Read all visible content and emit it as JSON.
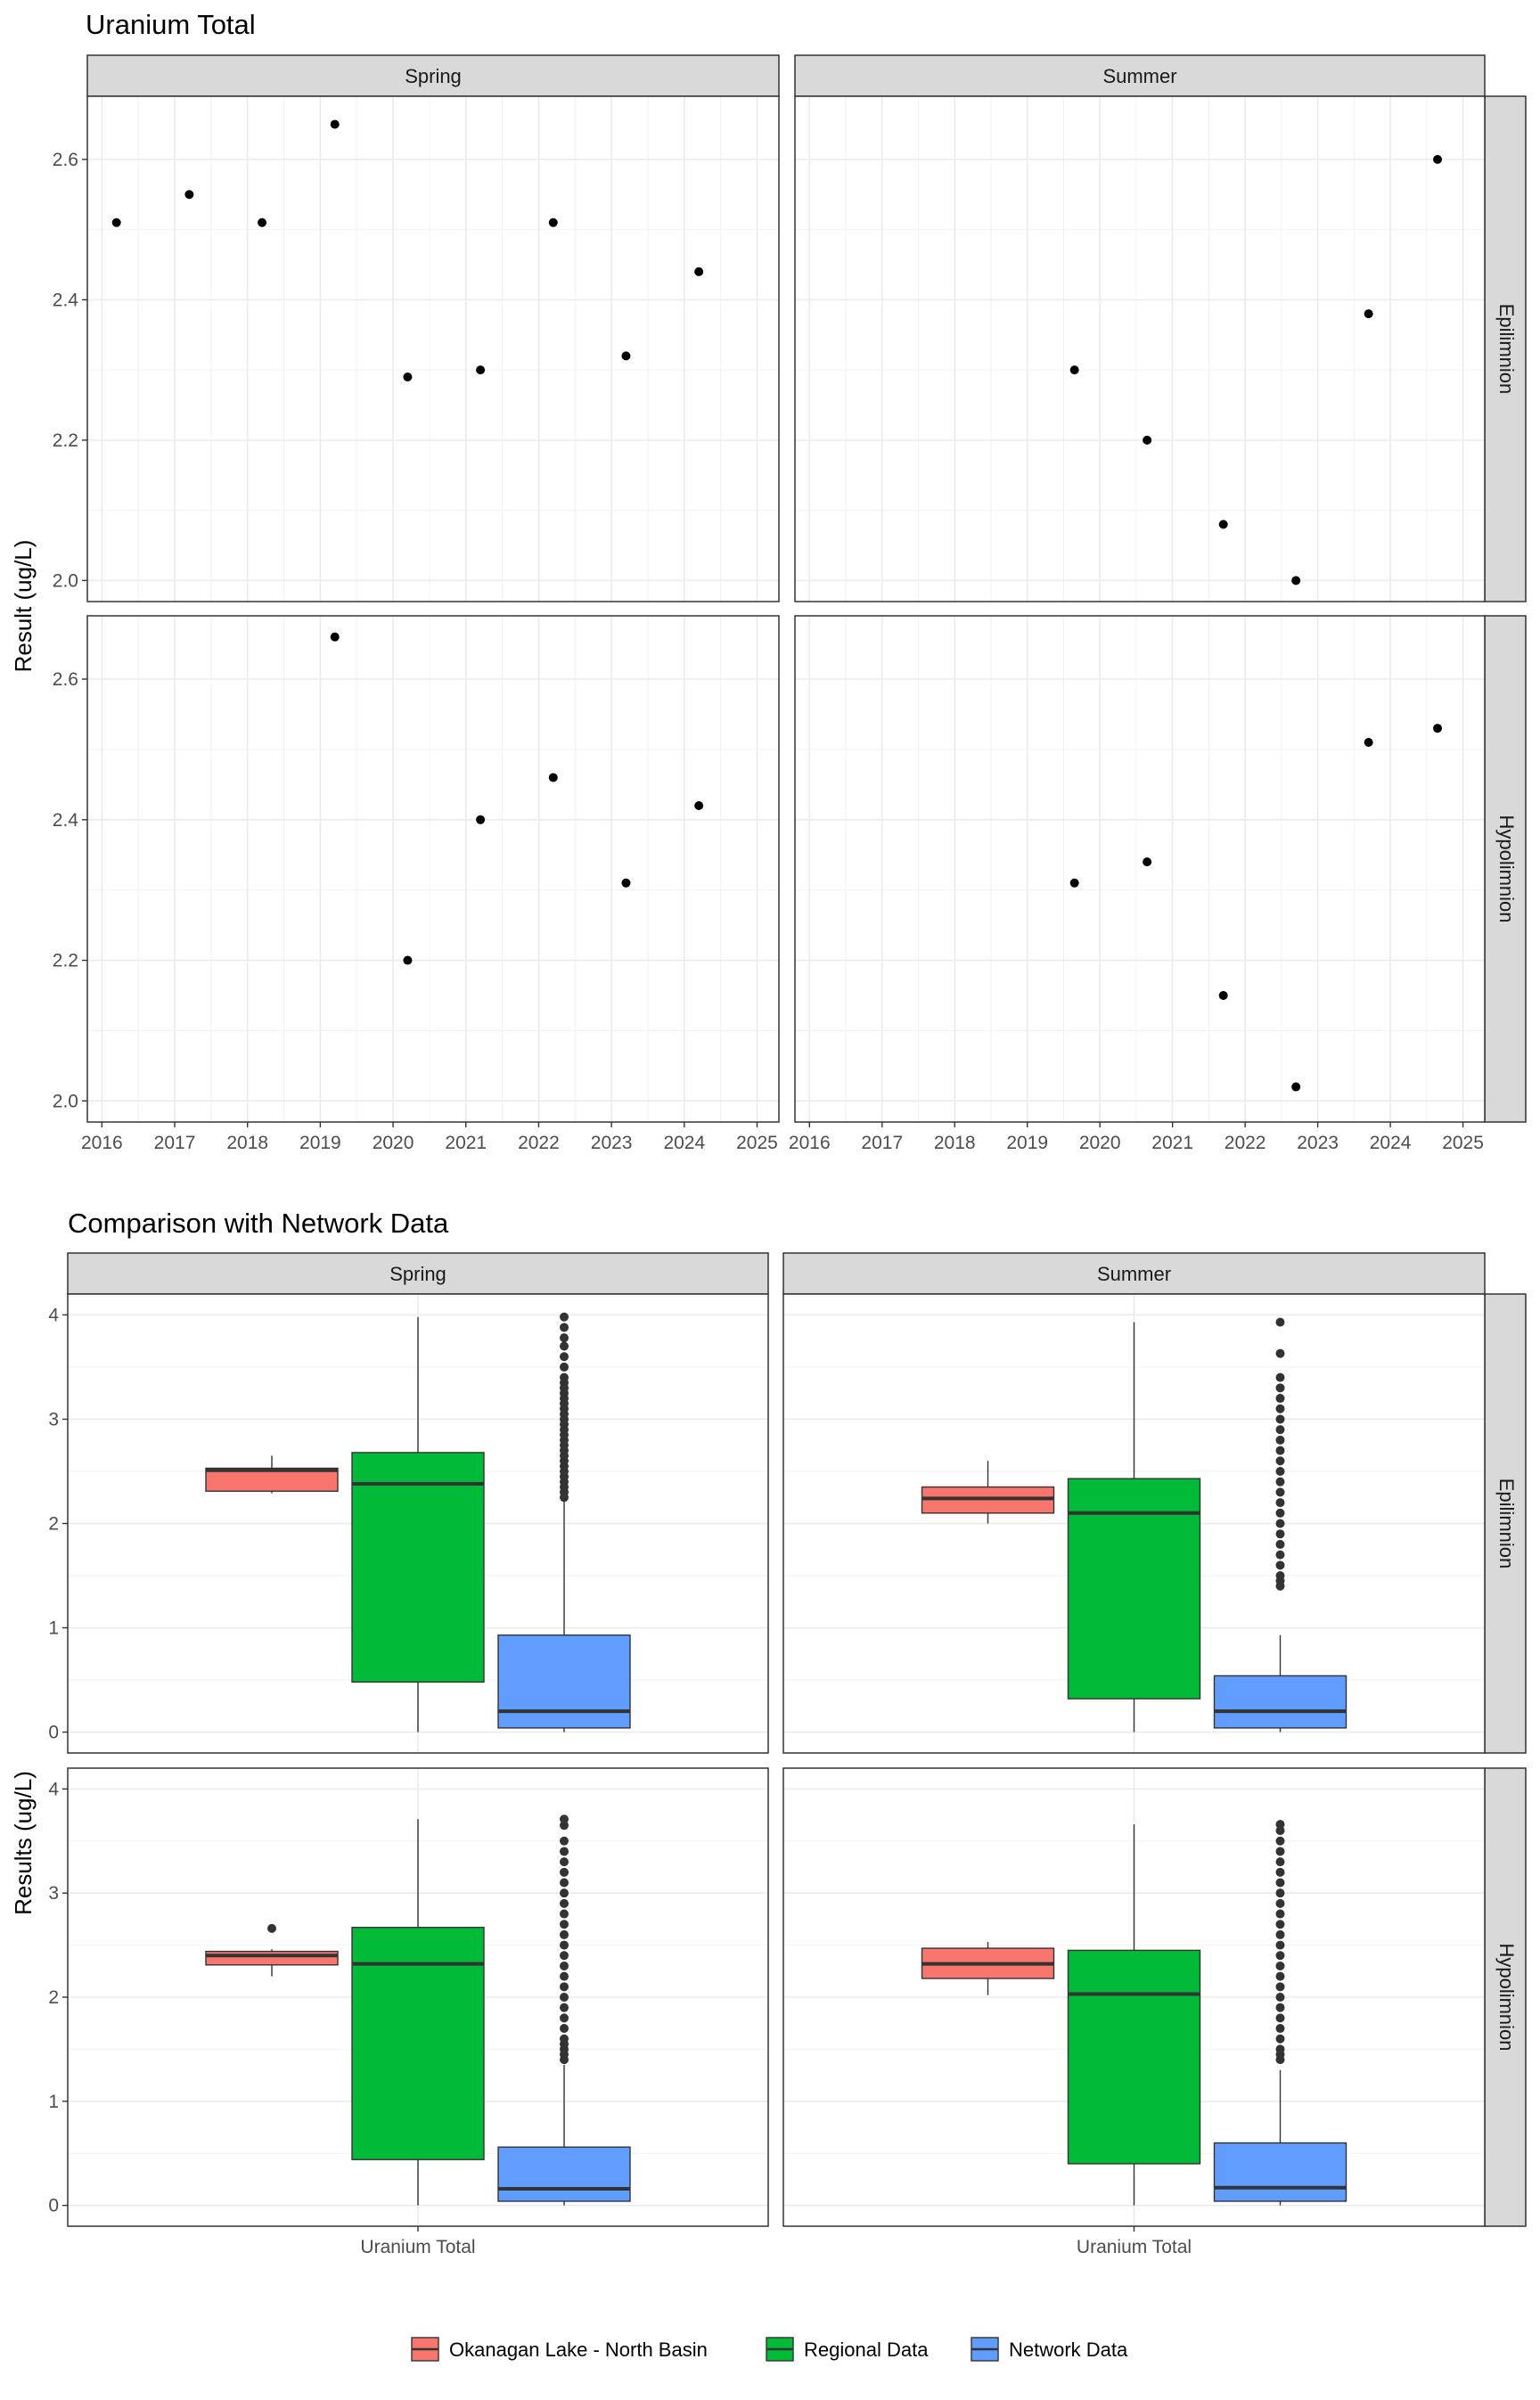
{
  "chart_data": [
    {
      "type": "scatter",
      "title": "Uranium Total",
      "ylabel": "Result (ug/L)",
      "xlabel": "",
      "x_ticks": [
        "2016",
        "2017",
        "2018",
        "2019",
        "2020",
        "2021",
        "2022",
        "2023",
        "2024",
        "2025"
      ],
      "xlim": [
        2015.8,
        2025.3
      ],
      "ylim": [
        1.97,
        2.69
      ],
      "y_ticks": [
        "2.0",
        "2.2",
        "2.4",
        "2.6"
      ],
      "grid": true,
      "col_facets": [
        "Spring",
        "Summer"
      ],
      "row_facets": [
        "Epilimnion",
        "Hypolimnion"
      ],
      "panels": [
        {
          "season": "Spring",
          "layer": "Epilimnion",
          "points": [
            [
              2016.2,
              2.51
            ],
            [
              2017.2,
              2.55
            ],
            [
              2018.2,
              2.51
            ],
            [
              2019.2,
              2.65
            ],
            [
              2020.2,
              2.29
            ],
            [
              2021.2,
              2.3
            ],
            [
              2022.2,
              2.51
            ],
            [
              2023.2,
              2.32
            ],
            [
              2024.2,
              2.44
            ]
          ]
        },
        {
          "season": "Summer",
          "layer": "Epilimnion",
          "points": [
            [
              2019.65,
              2.3
            ],
            [
              2020.65,
              2.2
            ],
            [
              2021.7,
              2.08
            ],
            [
              2022.7,
              2.0
            ],
            [
              2023.7,
              2.38
            ],
            [
              2024.65,
              2.6
            ]
          ]
        },
        {
          "season": "Spring",
          "layer": "Hypolimnion",
          "points": [
            [
              2019.2,
              2.66
            ],
            [
              2020.2,
              2.2
            ],
            [
              2021.2,
              2.4
            ],
            [
              2022.2,
              2.46
            ],
            [
              2023.2,
              2.31
            ],
            [
              2024.2,
              2.42
            ]
          ]
        },
        {
          "season": "Summer",
          "layer": "Hypolimnion",
          "points": [
            [
              2019.65,
              2.31
            ],
            [
              2020.65,
              2.34
            ],
            [
              2021.7,
              2.15
            ],
            [
              2022.7,
              2.02
            ],
            [
              2023.7,
              2.51
            ],
            [
              2024.65,
              2.53
            ]
          ]
        }
      ]
    },
    {
      "type": "box",
      "title": "Comparison with Network Data",
      "ylabel": "Results (ug/L)",
      "categories": [
        "Uranium Total"
      ],
      "ylim": [
        -0.2,
        4.2
      ],
      "y_ticks": [
        "0",
        "1",
        "2",
        "3",
        "4"
      ],
      "grid": true,
      "col_facets": [
        "Spring",
        "Summer"
      ],
      "row_facets": [
        "Epilimnion",
        "Hypolimnion"
      ],
      "legend": {
        "position": "bottom",
        "items": [
          {
            "label": "Okanagan Lake - North Basin",
            "color": "#F8766D"
          },
          {
            "label": "Regional Data",
            "color": "#00BA38"
          },
          {
            "label": "Network Data",
            "color": "#619CFF"
          }
        ]
      },
      "panels": [
        {
          "season": "Spring",
          "layer": "Epilimnion",
          "boxes": [
            {
              "group": "Okanagan Lake - North Basin",
              "min": 2.29,
              "q1": 2.31,
              "median": 2.51,
              "q3": 2.53,
              "max": 2.65,
              "outliers": []
            },
            {
              "group": "Regional Data",
              "min": 0.0,
              "q1": 0.48,
              "median": 2.38,
              "q3": 2.68,
              "max": 3.98,
              "outliers": []
            },
            {
              "group": "Network Data",
              "min": 0.0,
              "q1": 0.04,
              "median": 0.2,
              "q3": 0.93,
              "max": 2.3,
              "outliers": [
                2.25,
                2.3,
                2.35,
                2.4,
                2.45,
                2.5,
                2.55,
                2.6,
                2.65,
                2.7,
                2.75,
                2.8,
                2.85,
                2.9,
                2.95,
                3.0,
                3.05,
                3.1,
                3.15,
                3.2,
                3.25,
                3.3,
                3.35,
                3.4,
                3.5,
                3.6,
                3.7,
                3.78,
                3.88,
                3.98
              ]
            }
          ]
        },
        {
          "season": "Summer",
          "layer": "Epilimnion",
          "boxes": [
            {
              "group": "Okanagan Lake - North Basin",
              "min": 2.0,
              "q1": 2.1,
              "median": 2.24,
              "q3": 2.35,
              "max": 2.6,
              "outliers": []
            },
            {
              "group": "Regional Data",
              "min": 0.0,
              "q1": 0.32,
              "median": 2.1,
              "q3": 2.43,
              "max": 3.93,
              "outliers": []
            },
            {
              "group": "Network Data",
              "min": 0.0,
              "q1": 0.04,
              "median": 0.2,
              "q3": 0.54,
              "max": 0.93,
              "outliers": [
                1.4,
                1.45,
                1.5,
                1.6,
                1.7,
                1.8,
                1.9,
                2.0,
                2.1,
                2.2,
                2.3,
                2.4,
                2.5,
                2.6,
                2.7,
                2.8,
                2.9,
                3.0,
                3.1,
                3.2,
                3.3,
                3.4,
                3.63,
                3.93
              ]
            }
          ]
        },
        {
          "season": "Spring",
          "layer": "Hypolimnion",
          "boxes": [
            {
              "group": "Okanagan Lake - North Basin",
              "min": 2.2,
              "q1": 2.31,
              "median": 2.4,
              "q3": 2.44,
              "max": 2.46,
              "outliers": [
                2.66
              ]
            },
            {
              "group": "Regional Data",
              "min": 0.0,
              "q1": 0.44,
              "median": 2.32,
              "q3": 2.67,
              "max": 3.71,
              "outliers": []
            },
            {
              "group": "Network Data",
              "min": 0.0,
              "q1": 0.04,
              "median": 0.16,
              "q3": 0.56,
              "max": 1.35,
              "outliers": [
                1.4,
                1.45,
                1.5,
                1.55,
                1.6,
                1.7,
                1.8,
                1.9,
                2.0,
                2.1,
                2.2,
                2.3,
                2.4,
                2.5,
                2.6,
                2.7,
                2.8,
                2.9,
                3.0,
                3.1,
                3.2,
                3.3,
                3.4,
                3.5,
                3.65,
                3.71
              ]
            }
          ]
        },
        {
          "season": "Summer",
          "layer": "Hypolimnion",
          "boxes": [
            {
              "group": "Okanagan Lake - North Basin",
              "min": 2.02,
              "q1": 2.18,
              "median": 2.32,
              "q3": 2.47,
              "max": 2.53,
              "outliers": []
            },
            {
              "group": "Regional Data",
              "min": 0.0,
              "q1": 0.4,
              "median": 2.03,
              "q3": 2.45,
              "max": 3.66,
              "outliers": []
            },
            {
              "group": "Network Data",
              "min": 0.0,
              "q1": 0.04,
              "median": 0.17,
              "q3": 0.6,
              "max": 1.3,
              "outliers": [
                1.4,
                1.45,
                1.5,
                1.6,
                1.7,
                1.8,
                1.9,
                2.0,
                2.1,
                2.2,
                2.3,
                2.4,
                2.5,
                2.6,
                2.7,
                2.8,
                2.9,
                3.0,
                3.1,
                3.2,
                3.3,
                3.4,
                3.5,
                3.6,
                3.66
              ]
            }
          ]
        }
      ]
    }
  ]
}
